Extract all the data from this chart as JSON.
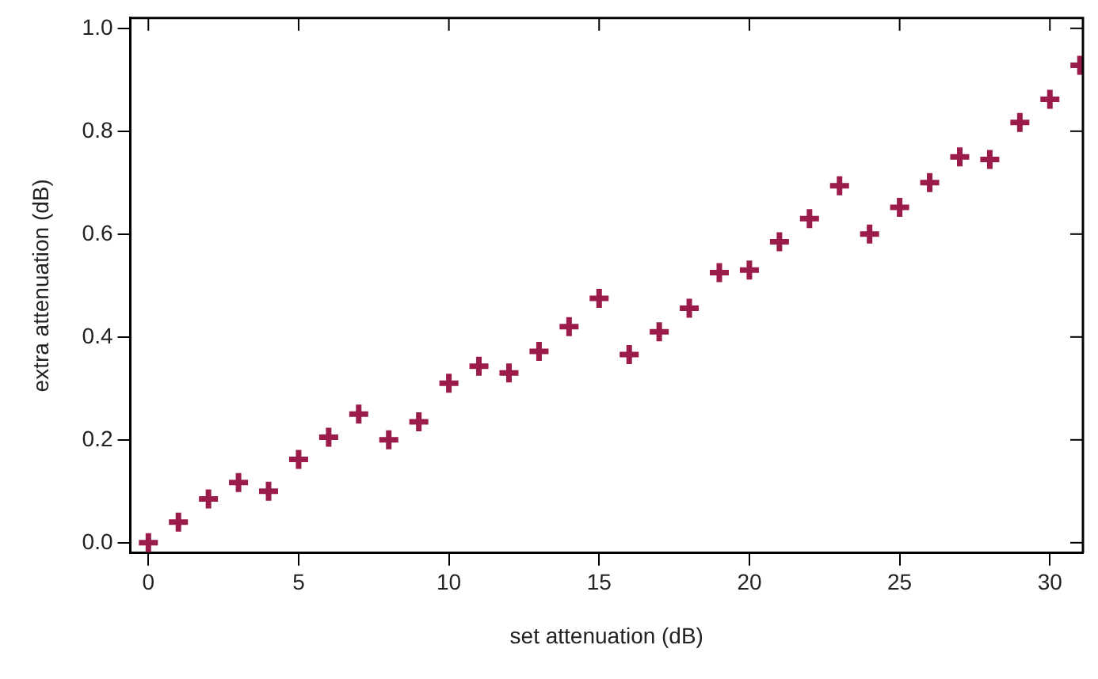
{
  "chart_data": {
    "type": "scatter",
    "xlabel": "set attenuation (dB)",
    "ylabel": "extra attenuation (dB)",
    "x": [
      0,
      1,
      2,
      3,
      4,
      5,
      6,
      7,
      8,
      9,
      10,
      11,
      12,
      13,
      14,
      15,
      16,
      17,
      18,
      19,
      20,
      21,
      22,
      23,
      24,
      25,
      26,
      27,
      28,
      29,
      30,
      31
    ],
    "series": [
      {
        "color": "#9b1b4a",
        "values": [
          0.0,
          0.04,
          0.085,
          0.117,
          0.1,
          0.162,
          0.205,
          0.25,
          0.2,
          0.235,
          0.31,
          0.343,
          0.33,
          0.372,
          0.42,
          0.475,
          0.366,
          0.41,
          0.456,
          0.525,
          0.53,
          0.585,
          0.63,
          0.694,
          0.6,
          0.652,
          0.7,
          0.75,
          0.745,
          0.817,
          0.862,
          0.928
        ]
      }
    ],
    "xlim": [
      -0.6,
      31.1
    ],
    "ylim": [
      -0.02,
      1.02
    ],
    "xticks": [
      0,
      5,
      10,
      15,
      20,
      25,
      30
    ],
    "yticks": [
      {
        "value": 0,
        "label": "0.0"
      },
      0.2,
      0.4,
      0.6,
      0.8,
      {
        "value": 1,
        "label": "1.0"
      }
    ],
    "grid": false,
    "legend": false,
    "marker": "cross"
  }
}
